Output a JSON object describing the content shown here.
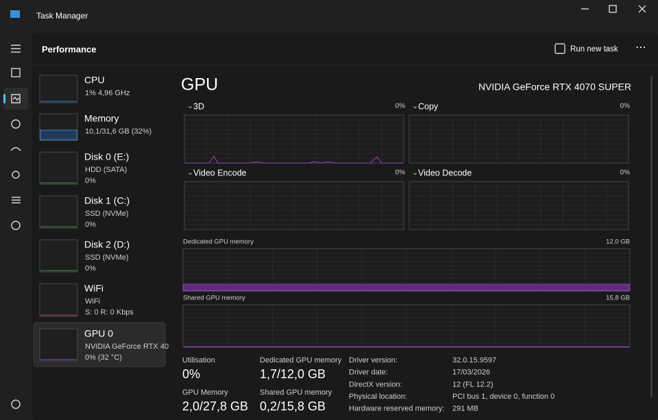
{
  "window": {
    "title": "Task Manager"
  },
  "header": {
    "title": "Performance",
    "run_new_task": "Run new task"
  },
  "sidebar": [
    {
      "name": "CPU",
      "lines": [
        "1% 4,96 GHz"
      ]
    },
    {
      "name": "Memory",
      "lines": [
        "10,1/31,6 GB (32%)"
      ]
    },
    {
      "name": "Disk 0 (E:)",
      "lines": [
        "HDD (SATA)",
        "0%"
      ]
    },
    {
      "name": "Disk 1 (C:)",
      "lines": [
        "SSD (NVMe)",
        "0%"
      ]
    },
    {
      "name": "Disk 2 (D:)",
      "lines": [
        "SSD (NVMe)",
        "0%"
      ]
    },
    {
      "name": "WiFi",
      "lines": [
        "WiFi",
        "S: 0 R: 0 Kbps"
      ]
    },
    {
      "name": "GPU 0",
      "lines": [
        "NVIDIA GeForce RTX 40",
        "0% (32 °C)"
      ]
    }
  ],
  "gpu": {
    "title": "GPU",
    "model": "NVIDIA GeForce RTX 4070 SUPER",
    "engines": [
      {
        "name": "3D",
        "value": "0%"
      },
      {
        "name": "Copy",
        "value": "0%"
      },
      {
        "name": "Video Encode",
        "value": "0%"
      },
      {
        "name": "Video Decode",
        "value": "0%"
      }
    ],
    "memory_graphs": [
      {
        "label": "Dedicated GPU memory",
        "max": "12,0 GB"
      },
      {
        "label": "Shared GPU memory",
        "max": "15,8 GB"
      }
    ],
    "stats": [
      {
        "label": "Utilisation",
        "value": "0%"
      },
      {
        "label": "Dedicated GPU memory",
        "value": "1,7/12,0 GB"
      },
      {
        "label": "GPU Memory",
        "value": "2,0/27,8 GB"
      },
      {
        "label": "Shared GPU memory",
        "value": "0,2/15,8 GB"
      }
    ],
    "details": [
      {
        "label": "Driver version:",
        "value": "32.0.15.9597"
      },
      {
        "label": "Driver date:",
        "value": "17/03/2026"
      },
      {
        "label": "DirectX version:",
        "value": "12 (FL 12.2)"
      },
      {
        "label": "Physical location:",
        "value": "PCI bus 1, device 0, function 0"
      },
      {
        "label": "Hardware reserved memory:",
        "value": "291 MB"
      }
    ]
  }
}
